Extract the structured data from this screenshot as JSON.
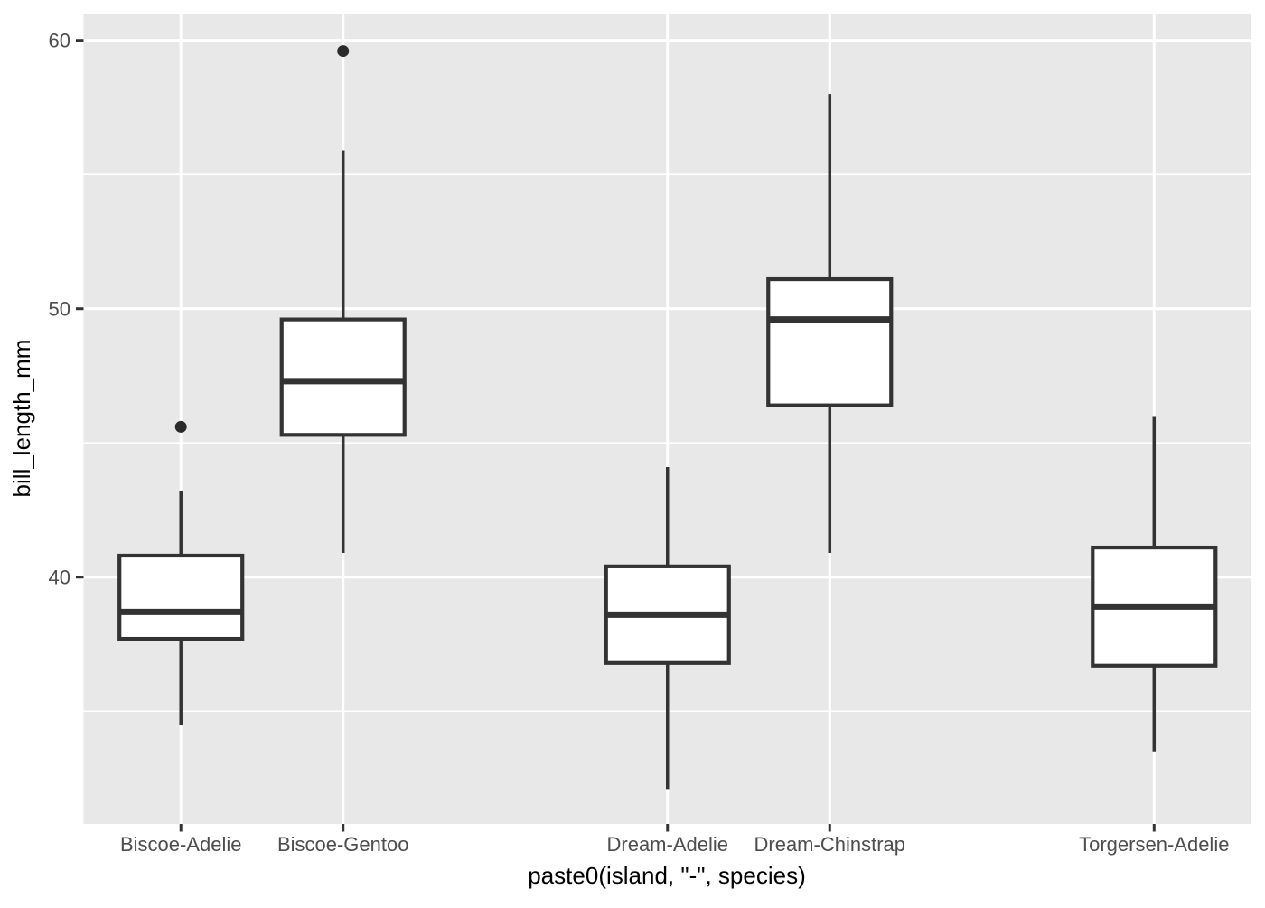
{
  "chart_data": {
    "type": "boxplot",
    "title": "",
    "xlabel": "paste0(island, \"-\", species)",
    "ylabel": "bill_length_mm",
    "categories": [
      "Biscoe-Adelie",
      "Biscoe-Gentoo",
      "Dream-Adelie",
      "Dream-Chinstrap",
      "Torgersen-Adelie"
    ],
    "series": [
      {
        "name": "Biscoe-Adelie",
        "slot": 1,
        "whisker_low": 34.5,
        "q1": 37.7,
        "median": 38.7,
        "q3": 40.8,
        "whisker_high": 43.2,
        "outliers": [
          45.6
        ]
      },
      {
        "name": "Biscoe-Gentoo",
        "slot": 2,
        "whisker_low": 40.9,
        "q1": 45.3,
        "median": 47.3,
        "q3": 49.6,
        "whisker_high": 55.9,
        "outliers": [
          59.6
        ]
      },
      {
        "name": "Dream-Adelie",
        "slot": 4,
        "whisker_low": 32.1,
        "q1": 36.8,
        "median": 38.6,
        "q3": 40.4,
        "whisker_high": 44.1,
        "outliers": []
      },
      {
        "name": "Dream-Chinstrap",
        "slot": 5,
        "whisker_low": 40.9,
        "q1": 46.4,
        "median": 49.6,
        "q3": 51.1,
        "whisker_high": 58.0,
        "outliers": []
      },
      {
        "name": "Torgersen-Adelie",
        "slot": 7,
        "whisker_low": 33.5,
        "q1": 36.7,
        "median": 38.9,
        "q3": 41.1,
        "whisker_high": 46.0,
        "outliers": []
      }
    ],
    "n_slots": 7,
    "ylim": [
      30.8,
      61.0
    ],
    "yticks_major": [
      40,
      50,
      60
    ],
    "yticks_minor": [
      35,
      45,
      55
    ],
    "grid": true,
    "legend": "none",
    "colors": {
      "panel_background": "#E8E8E8",
      "gridline": "#FFFFFF",
      "box_stroke": "#333333",
      "box_fill": "#FFFFFF",
      "outlier": "#2B2B2B",
      "tick_mark": "#333333",
      "axis_text": "#4D4D4D",
      "axis_title": "#000000",
      "figure_background": "#FFFFFF"
    }
  }
}
